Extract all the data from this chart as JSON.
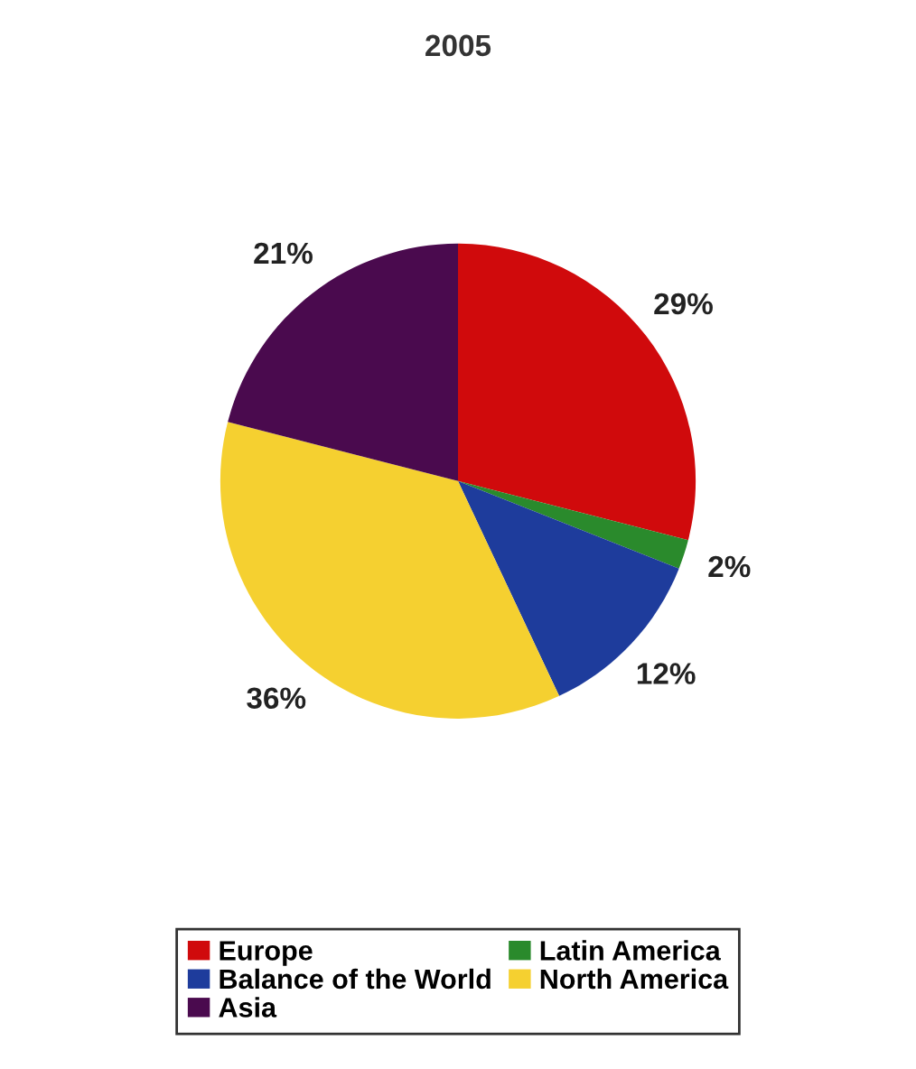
{
  "chart_data": {
    "type": "pie",
    "title": "2005",
    "categories": [
      "Europe",
      "Latin America",
      "Balance of the World",
      "North America",
      "Asia"
    ],
    "values": [
      29,
      2,
      12,
      36,
      21
    ],
    "value_labels": [
      "29%",
      "2%",
      "12%",
      "36%",
      "21%"
    ],
    "colors": [
      "#d00a0c",
      "#2a8a2c",
      "#1e3c9c",
      "#f5d030",
      "#4a0a4e"
    ],
    "legend": "bottom"
  }
}
